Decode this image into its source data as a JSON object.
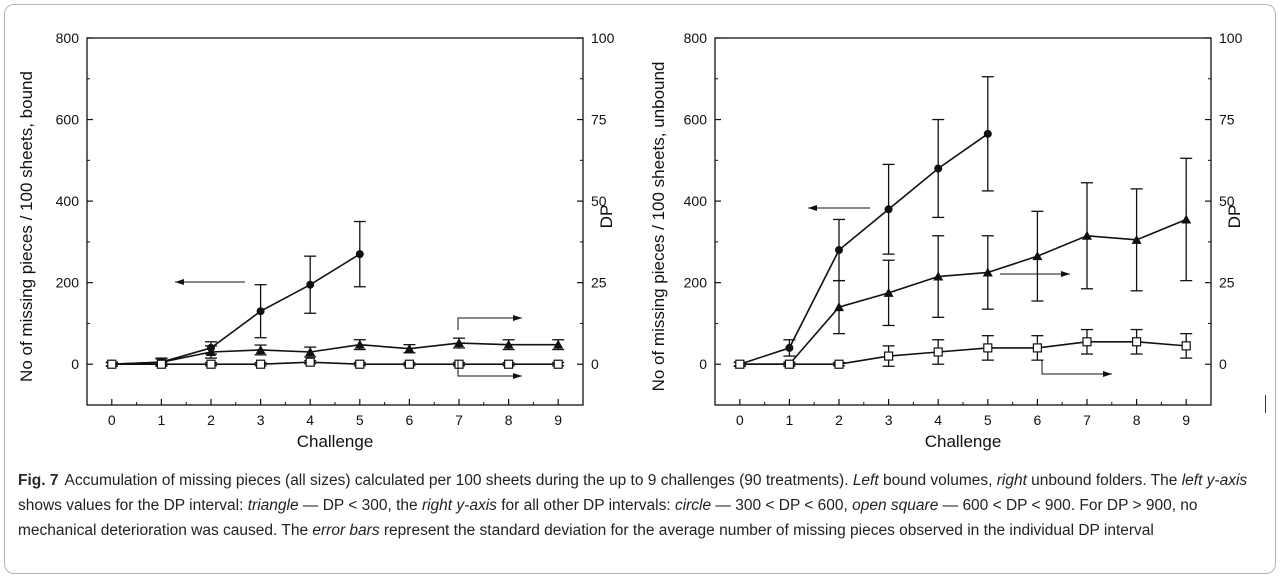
{
  "caption": {
    "label": "Fig. 7",
    "segments": [
      {
        "t": "Accumulation of missing pieces (all sizes) calculated per 100 sheets during the up to 9 challenges (90 treatments). ",
        "i": false
      },
      {
        "t": "Left",
        "i": true
      },
      {
        "t": " bound volumes, ",
        "i": false
      },
      {
        "t": "right",
        "i": true
      },
      {
        "t": " unbound folders. The ",
        "i": false
      },
      {
        "t": "left y-axis",
        "i": true
      },
      {
        "t": " shows values for the DP interval: ",
        "i": false
      },
      {
        "t": "triangle",
        "i": true
      },
      {
        "t": " — DP < 300, the ",
        "i": false
      },
      {
        "t": "right y-axis",
        "i": true
      },
      {
        "t": " for all other DP intervals: ",
        "i": false
      },
      {
        "t": "circle",
        "i": true
      },
      {
        "t": " — 300 < DP < 600, ",
        "i": false
      },
      {
        "t": "open square",
        "i": true
      },
      {
        "t": " — 600 < DP < 900. For DP > 900, no mechanical deterioration was caused. The ",
        "i": false
      },
      {
        "t": "error bars",
        "i": true
      },
      {
        "t": " represent the standard deviation for the average number of missing pieces observed in the individual DP interval",
        "i": false
      }
    ]
  },
  "chart_data": [
    {
      "type": "line",
      "xlabel": "Challenge",
      "ylabel_left": "No of missing pieces / 100 sheets, bound",
      "ylabel_right": "DP",
      "x_ticks": [
        0,
        1,
        2,
        3,
        4,
        5,
        6,
        7,
        8,
        9
      ],
      "ylim_left": [
        -100,
        800
      ],
      "yticks_left": [
        0,
        200,
        400,
        600,
        800
      ],
      "ylim_right": [
        -12.5,
        100
      ],
      "yticks_right": [
        0,
        25,
        50,
        75,
        100
      ],
      "series": [
        {
          "marker": "circle",
          "axis": "left",
          "x": [
            0,
            1,
            2,
            3,
            4,
            5
          ],
          "y": [
            0,
            5,
            40,
            130,
            195,
            270
          ],
          "err": [
            5,
            10,
            15,
            65,
            70,
            80
          ]
        },
        {
          "marker": "triangle",
          "axis": "left",
          "x": [
            0,
            1,
            2,
            3,
            4,
            5,
            6,
            7,
            8,
            9
          ],
          "y": [
            0,
            5,
            30,
            35,
            30,
            48,
            38,
            52,
            48,
            48
          ],
          "err": [
            5,
            8,
            15,
            12,
            12,
            12,
            10,
            12,
            12,
            12
          ]
        },
        {
          "marker": "square",
          "axis": "left",
          "x": [
            0,
            1,
            2,
            3,
            4,
            5,
            6,
            7,
            8,
            9
          ],
          "y": [
            0,
            0,
            0,
            0,
            5,
            0,
            0,
            0,
            0,
            0
          ],
          "err": [
            4,
            4,
            4,
            4,
            4,
            4,
            4,
            4,
            4,
            4
          ]
        }
      ]
    },
    {
      "type": "line",
      "xlabel": "Challenge",
      "ylabel_left": "No of missing pieces / 100 sheets, unbound",
      "ylabel_right": "DP",
      "x_ticks": [
        0,
        1,
        2,
        3,
        4,
        5,
        6,
        7,
        8,
        9
      ],
      "ylim_left": [
        -100,
        800
      ],
      "yticks_left": [
        0,
        200,
        400,
        600,
        800
      ],
      "ylim_right": [
        -12.5,
        100
      ],
      "yticks_right": [
        0,
        25,
        50,
        75,
        100
      ],
      "series": [
        {
          "marker": "circle",
          "axis": "left",
          "x": [
            0,
            1,
            2,
            3,
            4,
            5
          ],
          "y": [
            0,
            40,
            280,
            380,
            480,
            565
          ],
          "err": [
            5,
            20,
            75,
            110,
            120,
            140
          ]
        },
        {
          "marker": "triangle",
          "axis": "left",
          "x": [
            0,
            1,
            2,
            3,
            4,
            5,
            6,
            7,
            8,
            9
          ],
          "y": [
            0,
            0,
            140,
            175,
            215,
            225,
            265,
            315,
            305,
            355
          ],
          "err": [
            5,
            5,
            65,
            80,
            100,
            90,
            110,
            130,
            125,
            150
          ]
        },
        {
          "marker": "square",
          "axis": "left",
          "x": [
            0,
            1,
            2,
            3,
            4,
            5,
            6,
            7,
            8,
            9
          ],
          "y": [
            0,
            0,
            0,
            20,
            30,
            40,
            40,
            55,
            55,
            45
          ],
          "err": [
            4,
            4,
            4,
            25,
            30,
            30,
            30,
            30,
            30,
            30
          ]
        }
      ]
    }
  ]
}
